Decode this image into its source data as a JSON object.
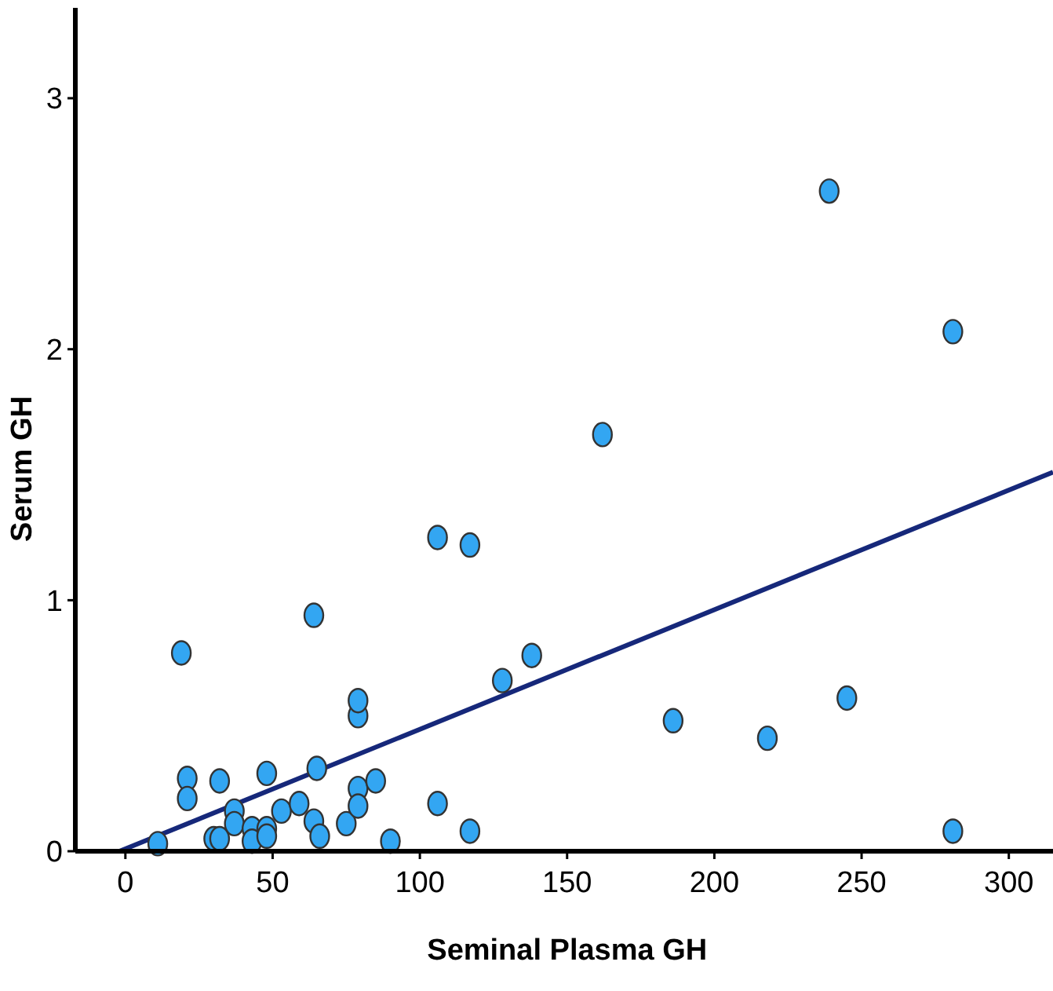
{
  "chart_data": {
    "type": "scatter",
    "xlabel": "Seminal Plasma GH",
    "ylabel": "Serum GH",
    "xlim": [
      -17,
      315
    ],
    "ylim": [
      0,
      3.36
    ],
    "xticks": [
      0,
      50,
      100,
      150,
      200,
      250,
      300
    ],
    "yticks": [
      0,
      1,
      2,
      3
    ],
    "grid": false,
    "series": [
      {
        "marker": "circle",
        "color": "#33a6f2",
        "x": [
          11,
          19,
          21,
          21,
          32,
          30,
          32,
          37,
          37,
          43,
          43,
          48,
          48,
          48,
          53,
          59,
          64,
          64,
          66,
          65,
          75,
          79,
          79,
          79,
          79,
          85,
          90,
          106,
          117,
          106,
          117,
          128,
          138,
          162,
          186,
          218,
          245,
          239,
          281,
          281
        ],
        "values": [
          0.03,
          0.79,
          0.29,
          0.21,
          0.28,
          0.05,
          0.05,
          0.16,
          0.11,
          0.09,
          0.04,
          0.31,
          0.09,
          0.06,
          0.16,
          0.19,
          0.94,
          0.12,
          0.06,
          0.33,
          0.11,
          0.54,
          0.6,
          0.25,
          0.18,
          0.28,
          0.04,
          0.19,
          0.08,
          1.25,
          1.22,
          0.68,
          0.78,
          1.66,
          0.52,
          0.45,
          0.61,
          2.63,
          2.07,
          0.08
        ]
      },
      {
        "type": "line",
        "color": "#16287a",
        "x": [
          -2,
          315
        ],
        "values": [
          0,
          1.51
        ]
      }
    ]
  }
}
